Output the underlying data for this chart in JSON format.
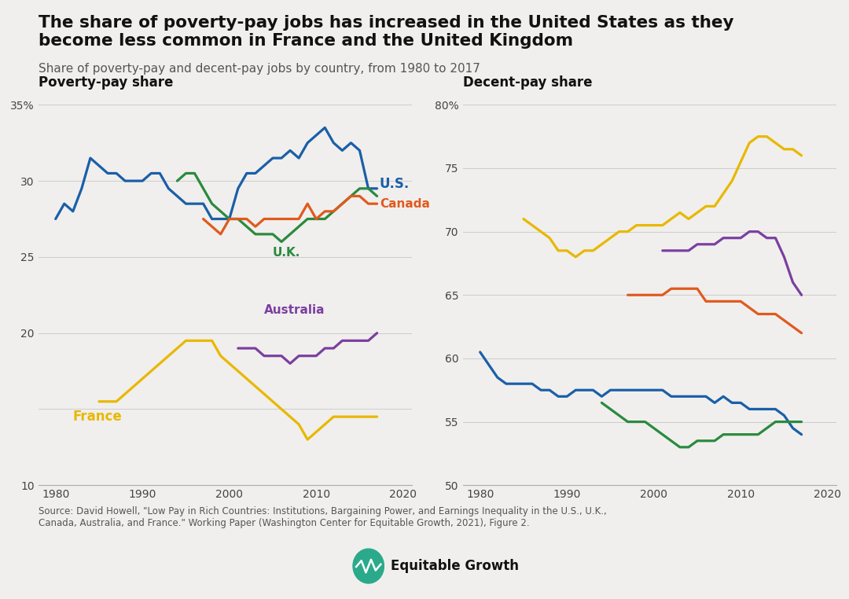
{
  "title_line1": "The share of poverty-pay jobs has increased in the United States as they",
  "title_line2": "become less common in France and the United Kingdom",
  "subtitle": "Share of poverty-pay and decent-pay jobs by country, from 1980 to 2017",
  "left_panel_title": "Poverty-pay share",
  "right_panel_title": "Decent-pay share",
  "source_text": "Source: David Howell, \"Low Pay in Rich Countries: Institutions, Bargaining Power, and Earnings Inequality in the U.S., U.K.,\nCanada, Australia, and France.\" Working Paper (Washington Center for Equitable Growth, 2021), Figure 2.",
  "background_color": "#f0efed",
  "colors": {
    "US": "#1a5fa8",
    "UK": "#2a8a3e",
    "Canada": "#e05a1e",
    "Australia": "#7b3fa0",
    "France": "#e8b800"
  },
  "poverty_data": {
    "US": {
      "years": [
        1980,
        1981,
        1982,
        1983,
        1984,
        1985,
        1986,
        1987,
        1988,
        1989,
        1990,
        1991,
        1992,
        1993,
        1994,
        1995,
        1996,
        1997,
        1998,
        1999,
        2000,
        2001,
        2002,
        2003,
        2004,
        2005,
        2006,
        2007,
        2008,
        2009,
        2010,
        2011,
        2012,
        2013,
        2014,
        2015,
        2016,
        2017
      ],
      "values": [
        27.5,
        28.5,
        28.0,
        29.5,
        31.5,
        31.0,
        30.5,
        30.5,
        30.0,
        30.0,
        30.0,
        30.5,
        30.5,
        29.5,
        29.0,
        28.5,
        28.5,
        28.5,
        27.5,
        27.5,
        27.5,
        29.5,
        30.5,
        30.5,
        31.0,
        31.5,
        31.5,
        32.0,
        31.5,
        32.5,
        33.0,
        33.5,
        32.5,
        32.0,
        32.5,
        32.0,
        29.5,
        29.5
      ]
    },
    "UK": {
      "years": [
        1994,
        1995,
        1996,
        1997,
        1998,
        1999,
        2000,
        2001,
        2002,
        2003,
        2004,
        2005,
        2006,
        2007,
        2008,
        2009,
        2010,
        2011,
        2012,
        2013,
        2014,
        2015,
        2016,
        2017
      ],
      "values": [
        30.0,
        30.5,
        30.5,
        29.5,
        28.5,
        28.0,
        27.5,
        27.5,
        27.0,
        26.5,
        26.5,
        26.5,
        26.0,
        26.5,
        27.0,
        27.5,
        27.5,
        27.5,
        28.0,
        28.5,
        29.0,
        29.5,
        29.5,
        29.0
      ]
    },
    "Canada": {
      "years": [
        1997,
        1998,
        1999,
        2000,
        2001,
        2002,
        2003,
        2004,
        2005,
        2006,
        2007,
        2008,
        2009,
        2010,
        2011,
        2012,
        2013,
        2014,
        2015,
        2016,
        2017
      ],
      "values": [
        27.5,
        27.0,
        26.5,
        27.5,
        27.5,
        27.5,
        27.0,
        27.5,
        27.5,
        27.5,
        27.5,
        27.5,
        28.5,
        27.5,
        28.0,
        28.0,
        28.5,
        29.0,
        29.0,
        28.5,
        28.5
      ]
    },
    "Australia": {
      "years": [
        2001,
        2002,
        2003,
        2004,
        2005,
        2006,
        2007,
        2008,
        2009,
        2010,
        2011,
        2012,
        2013,
        2014,
        2015,
        2016,
        2017
      ],
      "values": [
        19.0,
        19.0,
        19.0,
        18.5,
        18.5,
        18.5,
        18.0,
        18.5,
        18.5,
        18.5,
        19.0,
        19.0,
        19.5,
        19.5,
        19.5,
        19.5,
        20.0
      ]
    },
    "France": {
      "years": [
        1985,
        1986,
        1987,
        1988,
        1989,
        1990,
        1991,
        1992,
        1993,
        1994,
        1995,
        1996,
        1997,
        1998,
        1999,
        2000,
        2001,
        2002,
        2003,
        2004,
        2005,
        2006,
        2007,
        2008,
        2009,
        2010,
        2011,
        2012,
        2013,
        2014,
        2015,
        2016,
        2017
      ],
      "values": [
        15.5,
        15.5,
        15.5,
        16.0,
        16.5,
        17.0,
        17.5,
        18.0,
        18.5,
        19.0,
        19.5,
        19.5,
        19.5,
        19.5,
        18.5,
        18.0,
        17.5,
        17.0,
        16.5,
        16.0,
        15.5,
        15.0,
        14.5,
        14.0,
        13.0,
        13.5,
        14.0,
        14.5,
        14.5,
        14.5,
        14.5,
        14.5,
        14.5
      ]
    }
  },
  "decent_data": {
    "US": {
      "years": [
        1980,
        1981,
        1982,
        1983,
        1984,
        1985,
        1986,
        1987,
        1988,
        1989,
        1990,
        1991,
        1992,
        1993,
        1994,
        1995,
        1996,
        1997,
        1998,
        1999,
        2000,
        2001,
        2002,
        2003,
        2004,
        2005,
        2006,
        2007,
        2008,
        2009,
        2010,
        2011,
        2012,
        2013,
        2014,
        2015,
        2016,
        2017
      ],
      "values": [
        60.5,
        59.5,
        58.5,
        58.0,
        58.0,
        58.0,
        58.0,
        57.5,
        57.5,
        57.0,
        57.0,
        57.5,
        57.5,
        57.5,
        57.0,
        57.5,
        57.5,
        57.5,
        57.5,
        57.5,
        57.5,
        57.5,
        57.0,
        57.0,
        57.0,
        57.0,
        57.0,
        56.5,
        57.0,
        56.5,
        56.5,
        56.0,
        56.0,
        56.0,
        56.0,
        55.5,
        54.5,
        54.0
      ]
    },
    "UK": {
      "years": [
        1994,
        1995,
        1996,
        1997,
        1998,
        1999,
        2000,
        2001,
        2002,
        2003,
        2004,
        2005,
        2006,
        2007,
        2008,
        2009,
        2010,
        2011,
        2012,
        2013,
        2014,
        2015,
        2016,
        2017
      ],
      "values": [
        56.5,
        56.0,
        55.5,
        55.0,
        55.0,
        55.0,
        54.5,
        54.0,
        53.5,
        53.0,
        53.0,
        53.5,
        53.5,
        53.5,
        54.0,
        54.0,
        54.0,
        54.0,
        54.0,
        54.5,
        55.0,
        55.0,
        55.0,
        55.0
      ]
    },
    "Canada": {
      "years": [
        1997,
        1998,
        1999,
        2000,
        2001,
        2002,
        2003,
        2004,
        2005,
        2006,
        2007,
        2008,
        2009,
        2010,
        2011,
        2012,
        2013,
        2014,
        2015,
        2016,
        2017
      ],
      "values": [
        65.0,
        65.0,
        65.0,
        65.0,
        65.0,
        65.5,
        65.5,
        65.5,
        65.5,
        64.5,
        64.5,
        64.5,
        64.5,
        64.5,
        64.0,
        63.5,
        63.5,
        63.5,
        63.0,
        62.5,
        62.0
      ]
    },
    "Australia": {
      "years": [
        2001,
        2002,
        2003,
        2004,
        2005,
        2006,
        2007,
        2008,
        2009,
        2010,
        2011,
        2012,
        2013,
        2014,
        2015,
        2016,
        2017
      ],
      "values": [
        68.5,
        68.5,
        68.5,
        68.5,
        69.0,
        69.0,
        69.0,
        69.5,
        69.5,
        69.5,
        70.0,
        70.0,
        69.5,
        69.5,
        68.0,
        66.0,
        65.0
      ]
    },
    "France": {
      "years": [
        1985,
        1986,
        1987,
        1988,
        1989,
        1990,
        1991,
        1992,
        1993,
        1994,
        1995,
        1996,
        1997,
        1998,
        1999,
        2000,
        2001,
        2002,
        2003,
        2004,
        2005,
        2006,
        2007,
        2008,
        2009,
        2010,
        2011,
        2012,
        2013,
        2014,
        2015,
        2016,
        2017
      ],
      "values": [
        71.0,
        70.5,
        70.0,
        69.5,
        68.5,
        68.5,
        68.0,
        68.5,
        68.5,
        69.0,
        69.5,
        70.0,
        70.0,
        70.5,
        70.5,
        70.5,
        70.5,
        71.0,
        71.5,
        71.0,
        71.5,
        72.0,
        72.0,
        73.0,
        74.0,
        75.5,
        77.0,
        77.5,
        77.5,
        77.0,
        76.5,
        76.5,
        76.0
      ]
    }
  },
  "poverty_ylim": [
    10,
    35
  ],
  "poverty_yticks": [
    10,
    15,
    20,
    25,
    30,
    35
  ],
  "decent_ylim": [
    50,
    80
  ],
  "decent_yticks": [
    50,
    55,
    60,
    65,
    70,
    75,
    80
  ],
  "xlim": [
    1978,
    2021
  ],
  "xticks": [
    1980,
    1990,
    2000,
    2010,
    2020
  ]
}
